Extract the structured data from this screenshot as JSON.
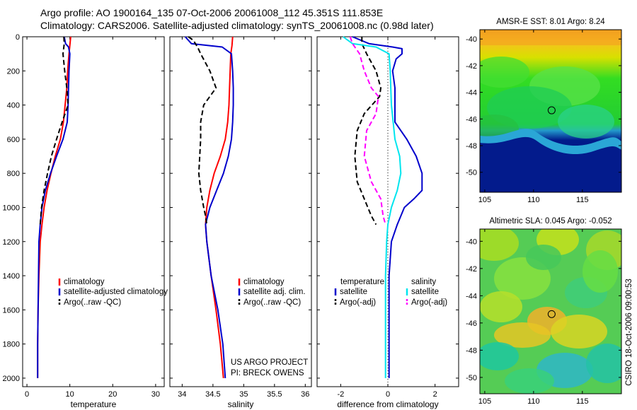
{
  "header": {
    "line1": "Argo profile: AO 1900164_135 07-Oct-2006 20061008_112 45.351S 111.853E",
    "line2": "Climatology: CARS2006. Satellite-adjusted climatology: synTS_20061008.nc (0.98d later)"
  },
  "credit": "CSIRO 18-Oct-2006 09:00:53",
  "project_note": {
    "line1": "US ARGO PROJECT",
    "line2": "PI: BRECK OWENS"
  },
  "colors": {
    "climatology": "#ff0000",
    "satellite": "#0000cc",
    "argo": "#000000",
    "satellite_diff": "#00e5ee",
    "argo_adj_diff": "#ff00ff"
  },
  "chart_data": [
    {
      "type": "line",
      "name": "temperature",
      "xlabel": "temperature",
      "ylabel": "",
      "xlim": [
        -1,
        32
      ],
      "ylim": [
        0,
        2050
      ],
      "y_reversed": true,
      "xticks": [
        0,
        10,
        20,
        30
      ],
      "yticks": [
        0,
        200,
        400,
        600,
        800,
        1000,
        1200,
        1400,
        1600,
        1800,
        2000
      ],
      "legend": [
        "climatology",
        "satellite-adjusted climatology",
        "Argo(..raw -QC)"
      ],
      "series": [
        {
          "name": "climatology",
          "color": "#ff0000",
          "dash": "",
          "x": [
            10.2,
            9.8,
            9.5,
            9.3,
            8.9,
            8.5,
            7.8,
            6.6,
            5.6,
            4.7,
            4.0,
            3.5,
            3.1,
            2.8,
            2.6,
            2.5,
            2.5
          ],
          "y": [
            0,
            100,
            200,
            300,
            400,
            500,
            600,
            700,
            800,
            900,
            1000,
            1100,
            1200,
            1400,
            1600,
            1800,
            2000
          ]
        },
        {
          "name": "satellite-adjusted climatology",
          "color": "#0000cc",
          "dash": "",
          "x": [
            8.7,
            9.0,
            9.7,
            10.0,
            9.8,
            9.7,
            9.6,
            9.4,
            8.4,
            6.9,
            5.5,
            4.3,
            3.5,
            3.1,
            2.8,
            2.7,
            2.6,
            2.5,
            2.5
          ],
          "y": [
            0,
            40,
            60,
            100,
            200,
            300,
            400,
            500,
            600,
            700,
            800,
            900,
            1000,
            1100,
            1200,
            1400,
            1600,
            1800,
            2000
          ]
        },
        {
          "name": "Argo(..raw -QC)",
          "color": "#000000",
          "dash": "7,4",
          "x": [
            8.6,
            8.7,
            8.4,
            8.8,
            9.3,
            9.6,
            8.2,
            6.9,
            5.7,
            4.8,
            4.0,
            3.4,
            3.1
          ],
          "y": [
            0,
            40,
            100,
            200,
            300,
            400,
            500,
            600,
            700,
            800,
            900,
            1000,
            1100
          ]
        }
      ]
    },
    {
      "type": "line",
      "name": "salinity",
      "xlabel": "salinity",
      "ylabel": "",
      "xlim": [
        33.8,
        36.1
      ],
      "ylim": [
        0,
        2050
      ],
      "y_reversed": true,
      "xticks": [
        34,
        34.5,
        35,
        35.5,
        36
      ],
      "yticks": [
        0,
        200,
        400,
        600,
        800,
        1000,
        1200,
        1400,
        1600,
        1800,
        2000
      ],
      "legend": [
        "climatology",
        "satellite adj. clim.",
        "Argo(..raw -QC)"
      ],
      "series": [
        {
          "name": "climatology",
          "color": "#ff0000",
          "dash": "",
          "x": [
            34.82,
            34.81,
            34.79,
            34.78,
            34.77,
            34.76,
            34.74,
            34.7,
            34.62,
            34.52,
            34.45,
            34.4,
            34.38,
            34.4,
            34.47,
            34.55,
            34.62,
            34.67
          ],
          "y": [
            0,
            50,
            100,
            200,
            300,
            400,
            500,
            600,
            700,
            800,
            900,
            1000,
            1100,
            1200,
            1400,
            1600,
            1800,
            2000
          ]
        },
        {
          "name": "satellite adj. clim.",
          "color": "#0000cc",
          "dash": "",
          "x": [
            34.05,
            34.15,
            34.65,
            34.8,
            34.82,
            34.83,
            34.83,
            34.82,
            34.8,
            34.75,
            34.67,
            34.56,
            34.45,
            34.38,
            34.4,
            34.47,
            34.58,
            34.66,
            34.7
          ],
          "y": [
            0,
            40,
            60,
            100,
            200,
            300,
            400,
            500,
            600,
            700,
            800,
            900,
            1000,
            1100,
            1200,
            1400,
            1600,
            1800,
            2000
          ]
        },
        {
          "name": "Argo(..raw -QC)",
          "color": "#000000",
          "dash": "7,4",
          "x": [
            34.1,
            34.18,
            34.25,
            34.3,
            34.45,
            34.55,
            34.45,
            34.35,
            34.3,
            34.3,
            34.27,
            34.3,
            34.35,
            34.38,
            34.4
          ],
          "y": [
            0,
            20,
            60,
            100,
            200,
            300,
            350,
            400,
            500,
            600,
            800,
            900,
            1000,
            1050,
            1100
          ]
        }
      ]
    },
    {
      "type": "line",
      "name": "difference",
      "xlabel": "difference from climatology",
      "ylabel": "",
      "xlim": [
        -3,
        3
      ],
      "ylim": [
        0,
        2050
      ],
      "y_reversed": true,
      "xticks": [
        -2,
        0,
        2
      ],
      "yticks": [
        0,
        200,
        400,
        600,
        800,
        1000,
        1200,
        1400,
        1600,
        1800,
        2000
      ],
      "legend": [
        "temperature",
        "satellite",
        "Argo(-adj)",
        "salinity",
        "satellite",
        "Argo(-adj)"
      ],
      "series": [
        {
          "name": "temperature satellite",
          "color": "#0000cc",
          "dash": "",
          "x": [
            -1.5,
            -0.8,
            0.2,
            0.6,
            0.6,
            0.35,
            0.2,
            0.3,
            0.3,
            0.8,
            1.2,
            1.45,
            1.45,
            1.1,
            0.7,
            0.4,
            0.15,
            0.05,
            0.05,
            0.05,
            0.05
          ],
          "y": [
            0,
            40,
            60,
            70,
            100,
            130,
            200,
            300,
            500,
            600,
            700,
            800,
            900,
            950,
            1000,
            1100,
            1200,
            1400,
            1600,
            1800,
            2000
          ]
        },
        {
          "name": "temperature Argo(-adj)",
          "color": "#000000",
          "dash": "7,4",
          "x": [
            -1.1,
            -1.1,
            -0.9,
            -0.5,
            -0.3,
            -0.35,
            -1.0,
            -1.3,
            -1.4,
            -1.3,
            -1.0,
            -0.85,
            -0.7,
            -0.5
          ],
          "y": [
            0,
            40,
            100,
            200,
            300,
            350,
            450,
            550,
            700,
            850,
            950,
            1000,
            1050,
            1100
          ]
        },
        {
          "name": "salinity satellite",
          "color": "#00e5ee",
          "dash": "",
          "x": [
            -1.9,
            -1.5,
            -0.5,
            0.05,
            0.1,
            0.15,
            0.3,
            0.5,
            0.55,
            0.4,
            0.15,
            0.0,
            -0.05,
            -0.1,
            -0.1,
            -0.1,
            -0.1
          ],
          "y": [
            0,
            40,
            60,
            100,
            200,
            400,
            600,
            700,
            800,
            900,
            1000,
            1100,
            1200,
            1400,
            1600,
            1800,
            2000
          ]
        },
        {
          "name": "salinity Argo(-adj)",
          "color": "#ff00ff",
          "dash": "7,4",
          "x": [
            -1.6,
            -1.5,
            -1.2,
            -1.0,
            -0.7,
            -0.4,
            -0.5,
            -0.9,
            -1.0,
            -0.7,
            -0.3,
            -0.2,
            -0.1
          ],
          "y": [
            0,
            40,
            100,
            200,
            300,
            350,
            450,
            550,
            700,
            850,
            950,
            1050,
            1100
          ]
        }
      ]
    },
    {
      "type": "heatmap",
      "name": "sst_map",
      "title": "AMSR-E SST: 8.01 Argo: 8.24",
      "xlim": [
        104.5,
        119
      ],
      "ylim": [
        -51.5,
        -39.3
      ],
      "xticks": [
        105,
        110,
        115
      ],
      "yticks": [
        -40,
        -42,
        -44,
        -46,
        -48,
        -50
      ],
      "marker": {
        "lon": 111.85,
        "lat": -45.35
      }
    },
    {
      "type": "heatmap",
      "name": "sla_map",
      "title": "Altimetric SLA: 0.045 Argo: -0.052",
      "xlim": [
        104.5,
        119
      ],
      "ylim": [
        -51.2,
        -39.1
      ],
      "xticks": [
        105,
        110,
        115
      ],
      "yticks": [
        -40,
        -42,
        -44,
        -46,
        -48,
        -50
      ],
      "marker": {
        "lon": 111.85,
        "lat": -45.35
      }
    }
  ]
}
